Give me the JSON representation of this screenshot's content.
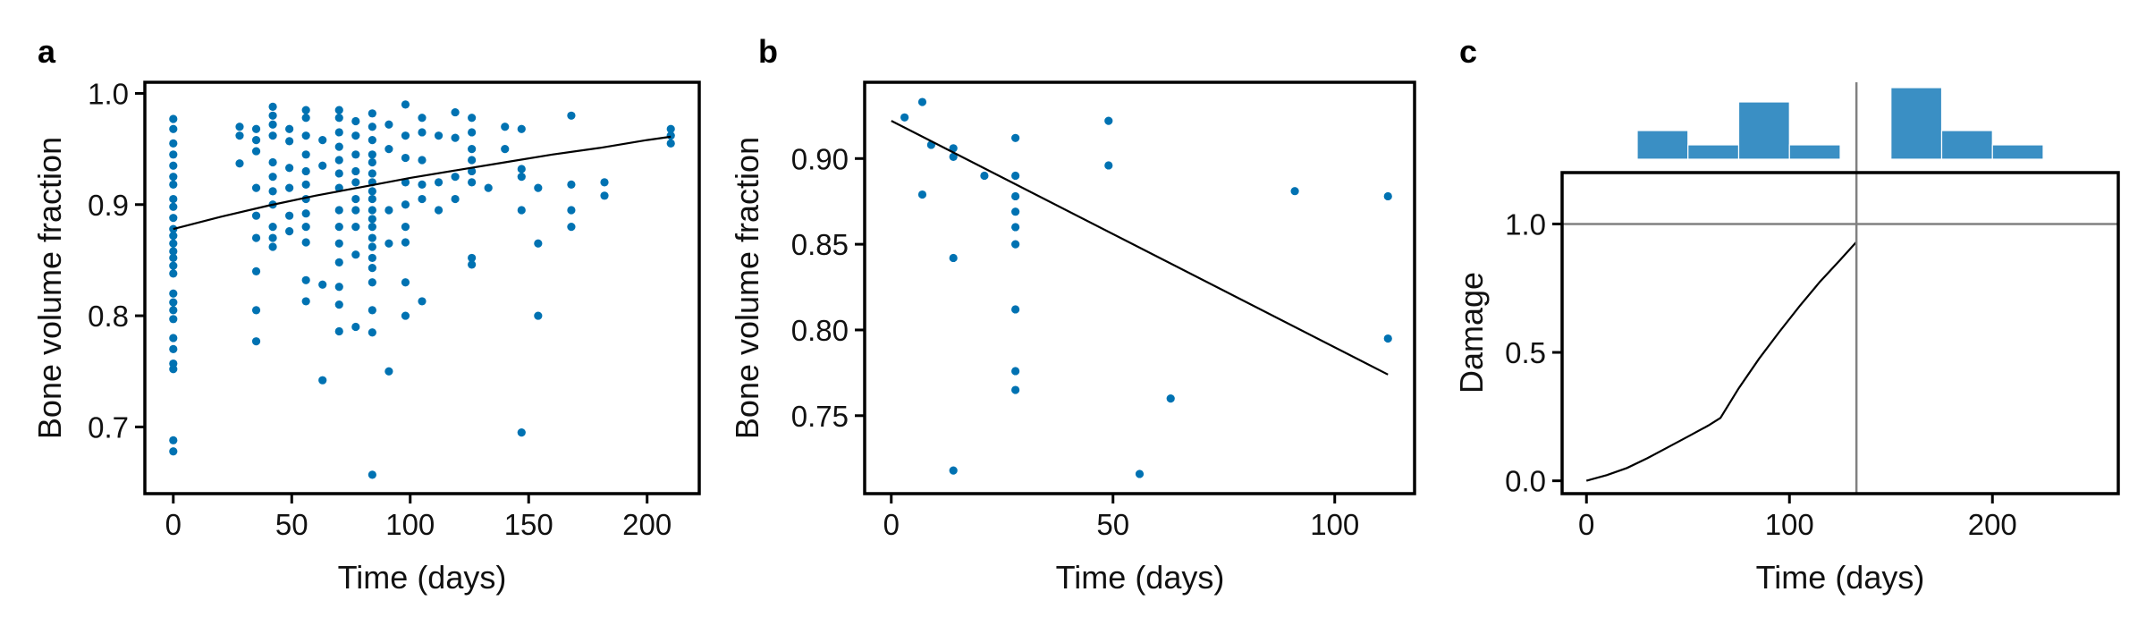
{
  "colors": {
    "points": "#0072b2",
    "bars": "#3a8fc4",
    "fit_line": "#000000",
    "reference_lines": "#808080"
  },
  "chart_data": [
    {
      "panel": "a",
      "type": "scatter",
      "xlabel": "Time (days)",
      "ylabel": "Bone volume fraction",
      "xlim": [
        -12,
        222
      ],
      "ylim": [
        0.64,
        1.01
      ],
      "xticks": [
        0,
        50,
        100,
        150,
        200
      ],
      "xtick_labels": [
        "0",
        "50",
        "100",
        "150",
        "200"
      ],
      "yticks": [
        0.7,
        0.8,
        0.9,
        1.0
      ],
      "ytick_labels": [
        "0.7",
        "0.8",
        "0.9",
        "1.0"
      ],
      "grid": false,
      "series": [
        {
          "type": "scatter",
          "points": [
            [
              0,
              0.977
            ],
            [
              0,
              0.968
            ],
            [
              0,
              0.955
            ],
            [
              0,
              0.945
            ],
            [
              0,
              0.935
            ],
            [
              0,
              0.925
            ],
            [
              0,
              0.918
            ],
            [
              0,
              0.905
            ],
            [
              0,
              0.898
            ],
            [
              0,
              0.888
            ],
            [
              0,
              0.878
            ],
            [
              0,
              0.872
            ],
            [
              0,
              0.865
            ],
            [
              0,
              0.858
            ],
            [
              0,
              0.852
            ],
            [
              0,
              0.845
            ],
            [
              0,
              0.838
            ],
            [
              0,
              0.82
            ],
            [
              0,
              0.812
            ],
            [
              0,
              0.805
            ],
            [
              0,
              0.797
            ],
            [
              0,
              0.78
            ],
            [
              0,
              0.77
            ],
            [
              0,
              0.757
            ],
            [
              0,
              0.752
            ],
            [
              0,
              0.688
            ],
            [
              0,
              0.678
            ],
            [
              28,
              0.97
            ],
            [
              28,
              0.962
            ],
            [
              28,
              0.937
            ],
            [
              35,
              0.968
            ],
            [
              35,
              0.958
            ],
            [
              35,
              0.948
            ],
            [
              35,
              0.915
            ],
            [
              35,
              0.89
            ],
            [
              35,
              0.87
            ],
            [
              35,
              0.84
            ],
            [
              35,
              0.805
            ],
            [
              35,
              0.777
            ],
            [
              42,
              0.988
            ],
            [
              42,
              0.98
            ],
            [
              42,
              0.972
            ],
            [
              42,
              0.962
            ],
            [
              42,
              0.938
            ],
            [
              42,
              0.925
            ],
            [
              42,
              0.912
            ],
            [
              42,
              0.9
            ],
            [
              42,
              0.88
            ],
            [
              42,
              0.87
            ],
            [
              42,
              0.862
            ],
            [
              49,
              0.968
            ],
            [
              49,
              0.957
            ],
            [
              49,
              0.933
            ],
            [
              49,
              0.915
            ],
            [
              49,
              0.89
            ],
            [
              49,
              0.876
            ],
            [
              56,
              0.985
            ],
            [
              56,
              0.978
            ],
            [
              56,
              0.962
            ],
            [
              56,
              0.945
            ],
            [
              56,
              0.93
            ],
            [
              56,
              0.918
            ],
            [
              56,
              0.905
            ],
            [
              56,
              0.892
            ],
            [
              56,
              0.88
            ],
            [
              56,
              0.866
            ],
            [
              56,
              0.832
            ],
            [
              56,
              0.813
            ],
            [
              63,
              0.958
            ],
            [
              63,
              0.935
            ],
            [
              63,
              0.828
            ],
            [
              63,
              0.742
            ],
            [
              70,
              0.985
            ],
            [
              70,
              0.978
            ],
            [
              70,
              0.965
            ],
            [
              70,
              0.952
            ],
            [
              70,
              0.94
            ],
            [
              70,
              0.928
            ],
            [
              70,
              0.915
            ],
            [
              70,
              0.895
            ],
            [
              70,
              0.88
            ],
            [
              70,
              0.865
            ],
            [
              70,
              0.848
            ],
            [
              70,
              0.826
            ],
            [
              70,
              0.81
            ],
            [
              70,
              0.786
            ],
            [
              77,
              0.975
            ],
            [
              77,
              0.962
            ],
            [
              77,
              0.945
            ],
            [
              77,
              0.93
            ],
            [
              77,
              0.92
            ],
            [
              77,
              0.905
            ],
            [
              77,
              0.895
            ],
            [
              77,
              0.88
            ],
            [
              77,
              0.855
            ],
            [
              77,
              0.79
            ],
            [
              84,
              0.982
            ],
            [
              84,
              0.97
            ],
            [
              84,
              0.958
            ],
            [
              84,
              0.945
            ],
            [
              84,
              0.938
            ],
            [
              84,
              0.928
            ],
            [
              84,
              0.92
            ],
            [
              84,
              0.912
            ],
            [
              84,
              0.905
            ],
            [
              84,
              0.895
            ],
            [
              84,
              0.887
            ],
            [
              84,
              0.88
            ],
            [
              84,
              0.87
            ],
            [
              84,
              0.862
            ],
            [
              84,
              0.852
            ],
            [
              84,
              0.843
            ],
            [
              84,
              0.83
            ],
            [
              84,
              0.805
            ],
            [
              84,
              0.785
            ],
            [
              84,
              0.657
            ],
            [
              91,
              0.972
            ],
            [
              91,
              0.95
            ],
            [
              91,
              0.895
            ],
            [
              91,
              0.865
            ],
            [
              91,
              0.75
            ],
            [
              98,
              0.99
            ],
            [
              98,
              0.962
            ],
            [
              98,
              0.942
            ],
            [
              98,
              0.92
            ],
            [
              98,
              0.9
            ],
            [
              98,
              0.88
            ],
            [
              98,
              0.866
            ],
            [
              98,
              0.83
            ],
            [
              98,
              0.8
            ],
            [
              105,
              0.978
            ],
            [
              105,
              0.965
            ],
            [
              105,
              0.94
            ],
            [
              105,
              0.918
            ],
            [
              105,
              0.905
            ],
            [
              105,
              0.813
            ],
            [
              112,
              0.962
            ],
            [
              112,
              0.92
            ],
            [
              112,
              0.895
            ],
            [
              119,
              0.983
            ],
            [
              119,
              0.96
            ],
            [
              119,
              0.925
            ],
            [
              119,
              0.905
            ],
            [
              126,
              0.978
            ],
            [
              126,
              0.965
            ],
            [
              126,
              0.95
            ],
            [
              126,
              0.94
            ],
            [
              126,
              0.93
            ],
            [
              126,
              0.92
            ],
            [
              126,
              0.852
            ],
            [
              126,
              0.846
            ],
            [
              133,
              0.915
            ],
            [
              140,
              0.97
            ],
            [
              140,
              0.95
            ],
            [
              147,
              0.968
            ],
            [
              147,
              0.932
            ],
            [
              147,
              0.925
            ],
            [
              147,
              0.895
            ],
            [
              147,
              0.695
            ],
            [
              154,
              0.915
            ],
            [
              154,
              0.865
            ],
            [
              154,
              0.8
            ],
            [
              168,
              0.98
            ],
            [
              168,
              0.918
            ],
            [
              168,
              0.895
            ],
            [
              168,
              0.88
            ],
            [
              182,
              0.92
            ],
            [
              182,
              0.908
            ],
            [
              210,
              0.968
            ],
            [
              210,
              0.962
            ],
            [
              210,
              0.955
            ]
          ]
        },
        {
          "type": "line",
          "x": [
            0,
            20,
            40,
            60,
            80,
            100,
            120,
            140,
            160,
            180,
            200,
            210
          ],
          "y": [
            0.878,
            0.889,
            0.899,
            0.908,
            0.916,
            0.924,
            0.931,
            0.938,
            0.945,
            0.951,
            0.958,
            0.961
          ]
        }
      ]
    },
    {
      "panel": "b",
      "type": "scatter",
      "xlabel": "Time (days)",
      "ylabel": "Bone volume fraction",
      "xlim": [
        -6,
        118
      ],
      "ylim": [
        0.7045,
        0.9445
      ],
      "xticks": [
        0,
        50,
        100
      ],
      "xtick_labels": [
        "0",
        "50",
        "100"
      ],
      "yticks": [
        0.75,
        0.8,
        0.85,
        0.9
      ],
      "ytick_labels": [
        "0.75",
        "0.80",
        "0.85",
        "0.90"
      ],
      "grid": false,
      "series": [
        {
          "type": "scatter",
          "points": [
            [
              3,
              0.924
            ],
            [
              7,
              0.933
            ],
            [
              7,
              0.879
            ],
            [
              9,
              0.908
            ],
            [
              14,
              0.906
            ],
            [
              14,
              0.901
            ],
            [
              14,
              0.842
            ],
            [
              14,
              0.718
            ],
            [
              21,
              0.89
            ],
            [
              28,
              0.912
            ],
            [
              28,
              0.89
            ],
            [
              28,
              0.878
            ],
            [
              28,
              0.869
            ],
            [
              28,
              0.86
            ],
            [
              28,
              0.85
            ],
            [
              28,
              0.812
            ],
            [
              28,
              0.776
            ],
            [
              28,
              0.765
            ],
            [
              49,
              0.922
            ],
            [
              49,
              0.896
            ],
            [
              56,
              0.716
            ],
            [
              63,
              0.76
            ],
            [
              91,
              0.881
            ],
            [
              112,
              0.878
            ],
            [
              112,
              0.795
            ]
          ]
        },
        {
          "type": "line",
          "x": [
            0,
            112
          ],
          "y": [
            0.922,
            0.774
          ]
        }
      ]
    },
    {
      "panel": "c",
      "type": "line",
      "xlabel": "Time (days)",
      "ylabel": "Damage",
      "xlim": [
        -12,
        262
      ],
      "ylim": [
        -0.05,
        1.2
      ],
      "xticks": [
        0,
        100,
        200
      ],
      "xtick_labels": [
        "0",
        "100",
        "200"
      ],
      "yticks": [
        0.0,
        0.5,
        1.0
      ],
      "ytick_labels": [
        "0.0",
        "0.5",
        "1.0"
      ],
      "grid": false,
      "series": [
        {
          "type": "line",
          "x": [
            0,
            10,
            20,
            30,
            40,
            50,
            60,
            66,
            75,
            85,
            95,
            105,
            115,
            125,
            133
          ],
          "y": [
            0.0,
            0.022,
            0.05,
            0.088,
            0.13,
            0.172,
            0.215,
            0.245,
            0.36,
            0.475,
            0.58,
            0.68,
            0.775,
            0.86,
            0.93
          ]
        },
        {
          "type": "reference_lines",
          "x": 133,
          "y": 1.0
        }
      ],
      "histogram": {
        "bins": [
          {
            "x0": 25,
            "x1": 50,
            "count": 2
          },
          {
            "x0": 50,
            "x1": 75,
            "count": 1
          },
          {
            "x0": 75,
            "x1": 100,
            "count": 4
          },
          {
            "x0": 100,
            "x1": 125,
            "count": 1
          },
          {
            "x0": 150,
            "x1": 175,
            "count": 5
          },
          {
            "x0": 175,
            "x1": 200,
            "count": 2
          },
          {
            "x0": 200,
            "x1": 225,
            "count": 1
          }
        ]
      }
    }
  ]
}
